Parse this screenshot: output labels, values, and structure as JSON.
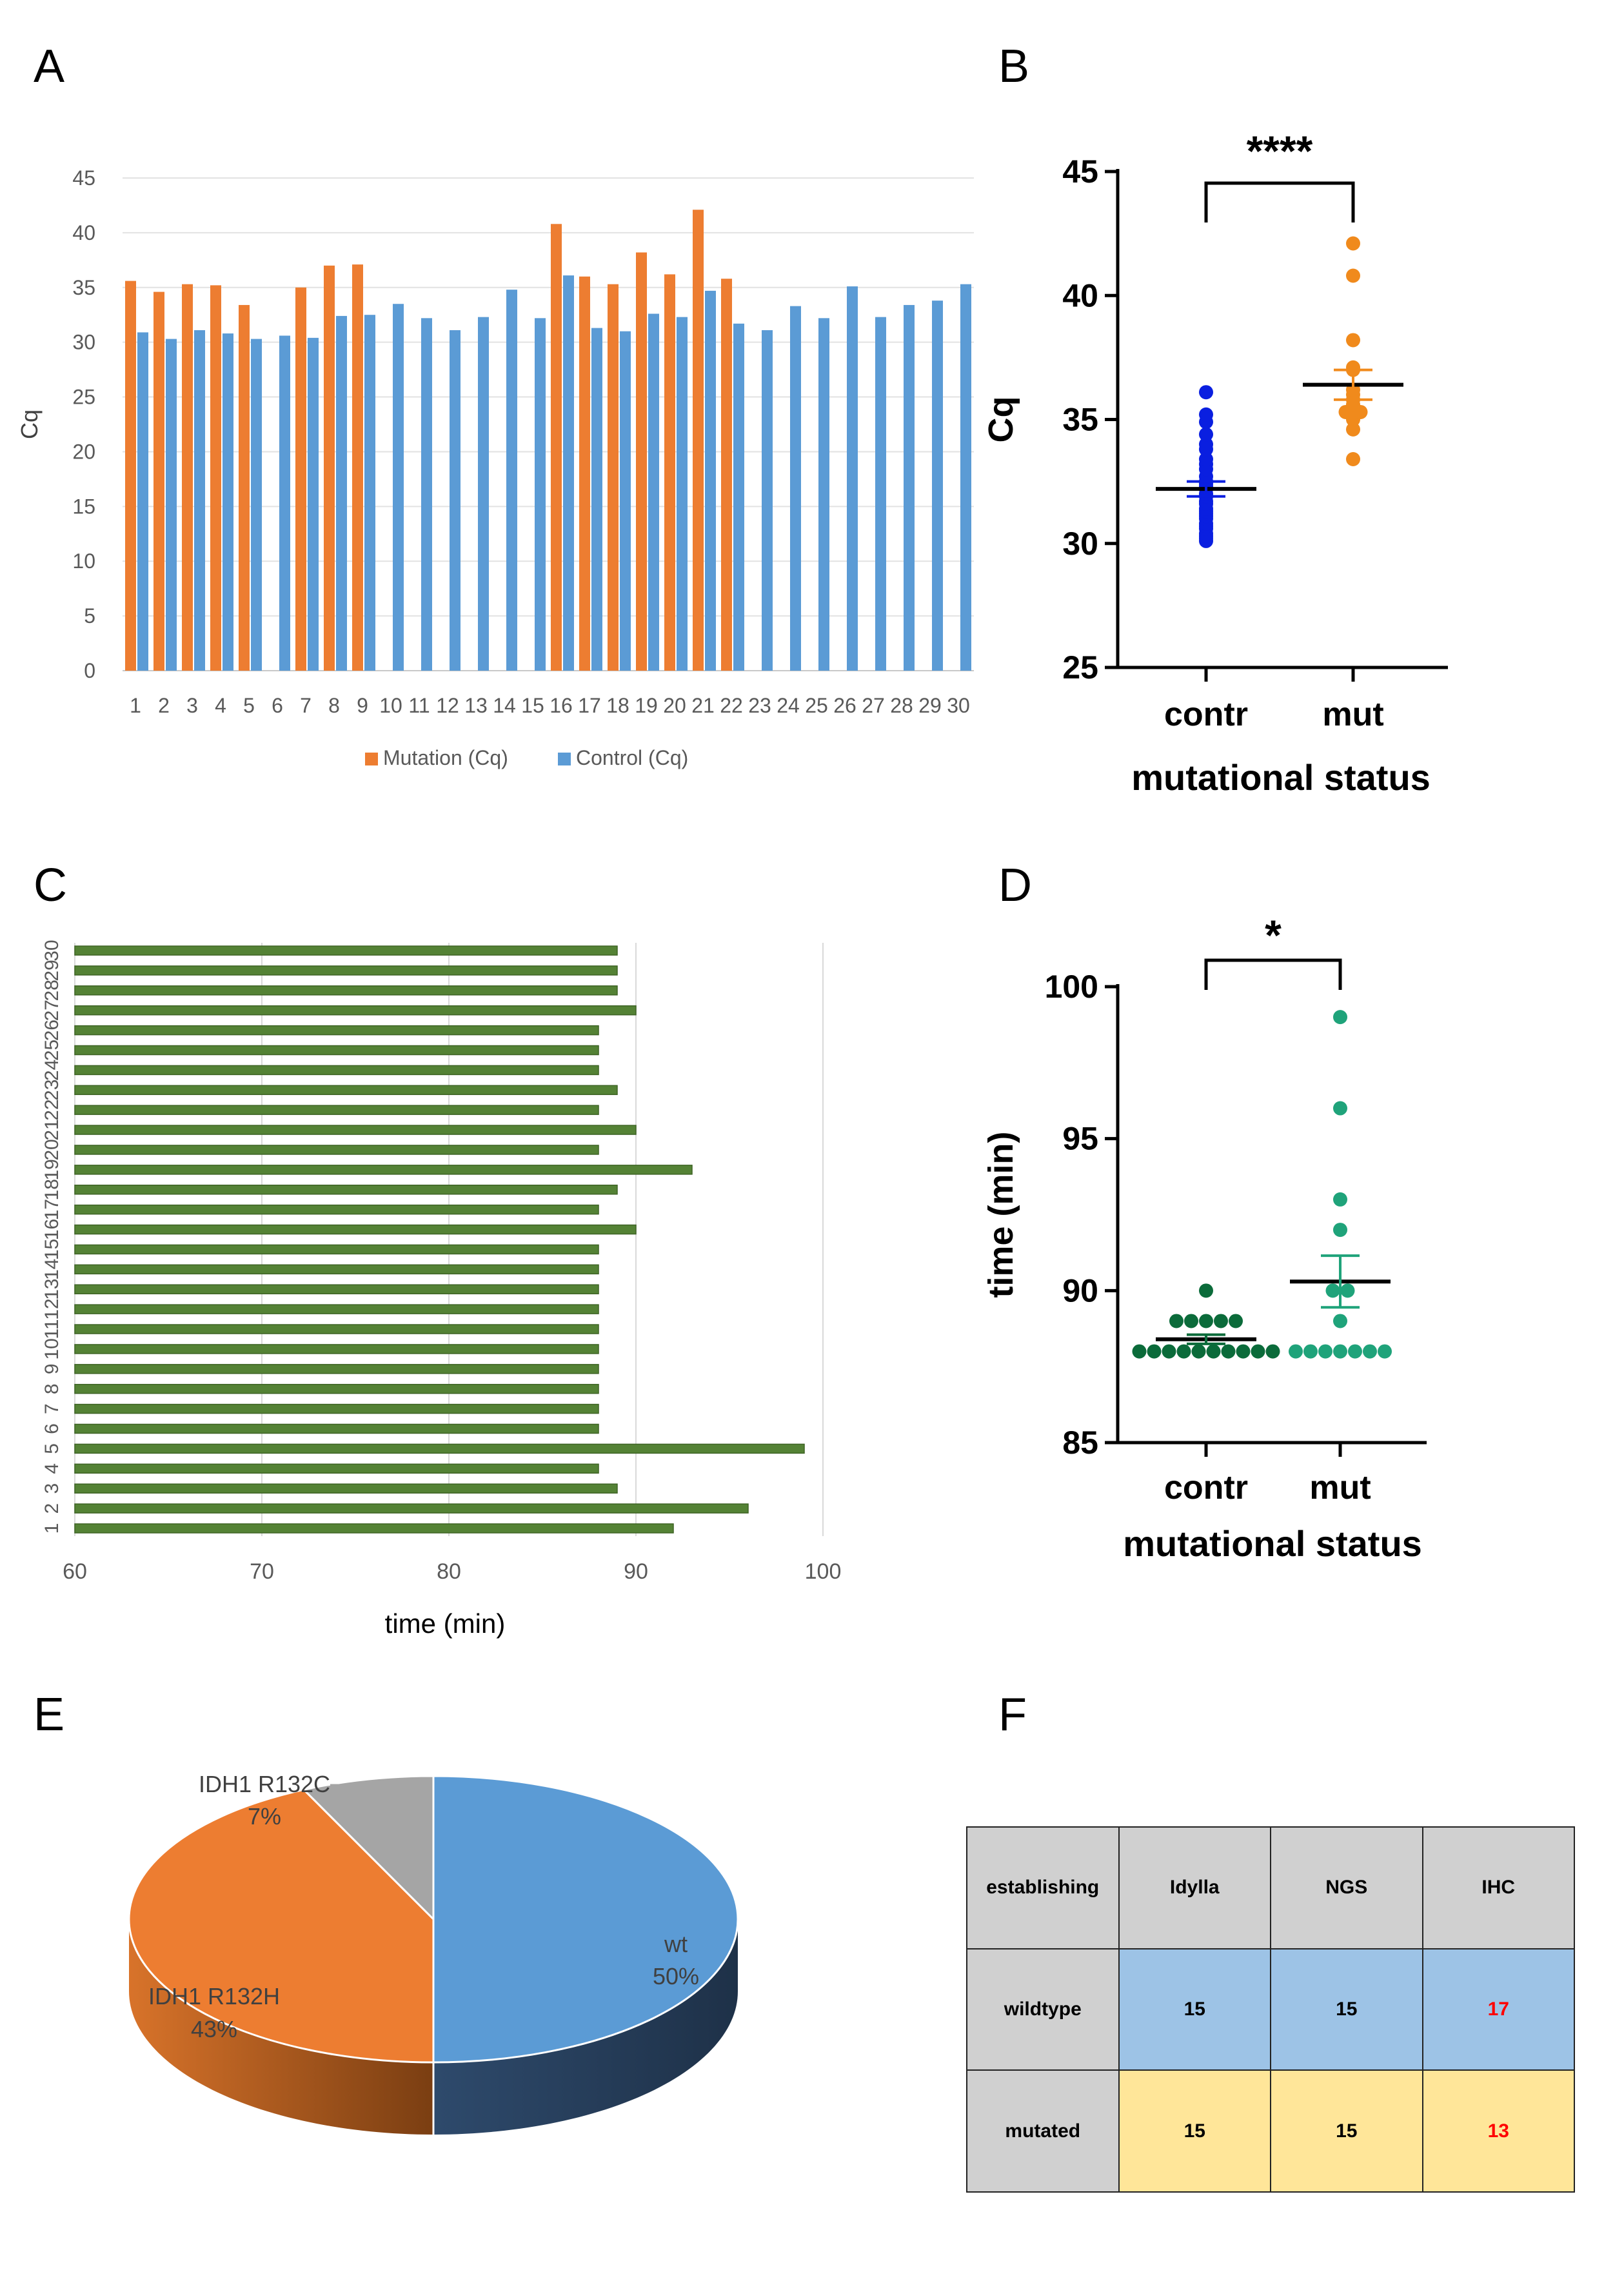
{
  "panels": {
    "a": "A",
    "b": "B",
    "c": "C",
    "d": "D",
    "e": "E",
    "f": "F"
  },
  "chart_data": [
    {
      "id": "A",
      "type": "bar",
      "ylabel": "Cq",
      "ylim": [
        0,
        45
      ],
      "yticks": [
        0,
        5,
        10,
        15,
        20,
        25,
        30,
        35,
        40,
        45
      ],
      "categories": [
        "1",
        "2",
        "3",
        "4",
        "5",
        "6",
        "7",
        "8",
        "9",
        "10",
        "11",
        "12",
        "13",
        "14",
        "15",
        "16",
        "17",
        "18",
        "19",
        "20",
        "21",
        "22",
        "23",
        "24",
        "25",
        "26",
        "27",
        "28",
        "29",
        "30"
      ],
      "series": [
        {
          "name": "Mutation (Cq)",
          "color": "#ED7D31",
          "values": [
            35.6,
            34.6,
            35.3,
            35.2,
            33.4,
            null,
            35.0,
            37.0,
            37.1,
            null,
            null,
            null,
            null,
            null,
            null,
            40.8,
            36.0,
            35.3,
            38.2,
            36.2,
            42.1,
            35.8,
            null,
            null,
            null,
            null,
            null,
            null,
            null,
            null
          ]
        },
        {
          "name": "Control (Cq)",
          "color": "#5B9BD5",
          "values": [
            30.9,
            30.3,
            31.1,
            30.8,
            30.3,
            30.6,
            30.4,
            32.4,
            32.5,
            33.5,
            32.2,
            31.1,
            32.3,
            34.8,
            32.2,
            36.1,
            31.3,
            31.0,
            32.6,
            32.3,
            34.7,
            31.7,
            31.1,
            33.3,
            32.2,
            35.1,
            32.3,
            33.4,
            33.8,
            35.3
          ]
        }
      ],
      "legend": "bottom",
      "grid": true
    },
    {
      "id": "B",
      "type": "scatter",
      "ylabel": "Cq",
      "xlabel": "mutational status",
      "ylim": [
        25,
        45
      ],
      "yticks": [
        25,
        30,
        35,
        40,
        45
      ],
      "categories": [
        "contr",
        "mut"
      ],
      "significance": "****",
      "series": [
        {
          "name": "contr",
          "color": "#0A1FE0",
          "mean": 32.2,
          "sem": 0.3,
          "values": [
            30.1,
            30.2,
            30.3,
            30.4,
            30.6,
            30.7,
            30.8,
            31.0,
            31.1,
            31.2,
            31.3,
            31.4,
            31.6,
            31.7,
            31.9,
            32.0,
            32.2,
            32.3,
            32.4,
            32.5,
            32.7,
            33.0,
            33.2,
            33.4,
            33.8,
            34.0,
            34.4,
            34.9,
            35.2,
            36.1
          ]
        },
        {
          "name": "mut",
          "color": "#F08A1C",
          "mean": 36.4,
          "sem": 0.6,
          "values": [
            33.4,
            34.6,
            35.0,
            35.2,
            35.3,
            35.3,
            35.6,
            35.8,
            36.0,
            36.2,
            37.0,
            37.1,
            38.2,
            40.8,
            42.1
          ]
        }
      ]
    },
    {
      "id": "C",
      "type": "bar",
      "orientation": "horizontal",
      "xlabel": "time (min)",
      "xlim": [
        60,
        100
      ],
      "xticks": [
        60,
        70,
        80,
        90,
        100
      ],
      "color": "#548235",
      "categories": [
        "1",
        "2",
        "3",
        "4",
        "5",
        "6",
        "7",
        "8",
        "9",
        "10",
        "11",
        "12",
        "13",
        "14",
        "15",
        "16",
        "17",
        "18",
        "19",
        "20",
        "21",
        "22",
        "23",
        "24",
        "25",
        "26",
        "27",
        "28",
        "29",
        "30"
      ],
      "values": [
        92,
        96,
        89,
        88,
        99,
        88,
        88,
        88,
        88,
        88,
        88,
        88,
        88,
        88,
        88,
        90,
        88,
        89,
        93,
        88,
        90,
        88,
        89,
        88,
        88,
        88,
        90,
        89,
        89,
        89
      ],
      "grid": true
    },
    {
      "id": "D",
      "type": "scatter",
      "ylabel": "time (min)",
      "xlabel": "mutational status",
      "ylim": [
        85,
        100
      ],
      "yticks": [
        85,
        90,
        95,
        100
      ],
      "categories": [
        "contr",
        "mut"
      ],
      "significance": "*",
      "series": [
        {
          "name": "contr",
          "color": "#0B6B3A",
          "mean": 88.4,
          "sem": 0.15,
          "values": [
            88,
            88,
            88,
            88,
            88,
            88,
            88,
            88,
            88,
            88,
            89,
            89,
            89,
            89,
            89,
            90
          ]
        },
        {
          "name": "mut",
          "color": "#1FA37A",
          "mean": 90.3,
          "sem": 0.85,
          "values": [
            88,
            88,
            88,
            88,
            88,
            88,
            88,
            89,
            90,
            90,
            92,
            93,
            96,
            99
          ]
        }
      ]
    },
    {
      "id": "E",
      "type": "pie",
      "slices": [
        {
          "label": "wt",
          "pct": "50%",
          "value": 50,
          "color": "#5B9BD5"
        },
        {
          "label": "IDH1 R132H",
          "pct": "43%",
          "value": 43,
          "color": "#ED7D31"
        },
        {
          "label": "IDH1 R132C",
          "pct": "7%",
          "value": 7,
          "color": "#A5A5A5"
        }
      ]
    },
    {
      "id": "F",
      "type": "table",
      "header": [
        "establishing",
        "Idylla",
        "NGS",
        "IHC"
      ],
      "rows": [
        {
          "label": "wildtype",
          "values": [
            "15",
            "15",
            "17"
          ],
          "highlight": [
            false,
            false,
            true
          ]
        },
        {
          "label": "mutated",
          "values": [
            "15",
            "15",
            "13"
          ],
          "highlight": [
            false,
            false,
            true
          ]
        }
      ]
    }
  ]
}
